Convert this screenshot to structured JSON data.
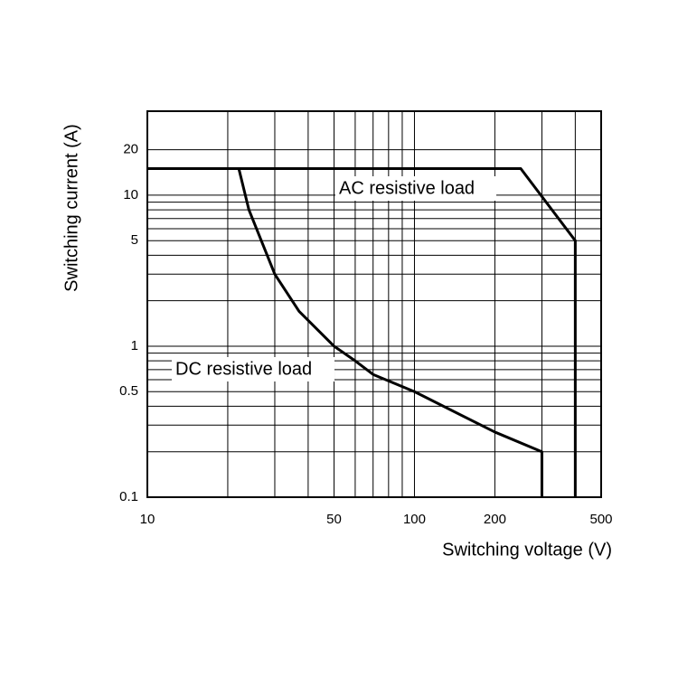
{
  "chart_data": {
    "type": "line",
    "x_label": "Switching voltage (V)",
    "y_label": "Switching current (A)",
    "xscale": "log",
    "yscale": "log",
    "xlim": [
      10,
      500
    ],
    "ylim": [
      0.1,
      36
    ],
    "xticks": [
      10,
      50,
      100,
      200,
      500
    ],
    "yticks": [
      0.1,
      0.5,
      1,
      5,
      10,
      20
    ],
    "xgrid": [
      20,
      30,
      40,
      50,
      60,
      70,
      80,
      90,
      100,
      200,
      300,
      400
    ],
    "ygrid": [
      0.2,
      0.3,
      0.4,
      0.5,
      0.6,
      0.7,
      0.8,
      0.9,
      1,
      2,
      3,
      4,
      5,
      6,
      7,
      8,
      9,
      10,
      20
    ],
    "grid": true,
    "series": [
      {
        "name": "AC resistive load",
        "color": "#000000",
        "x": [
          10,
          250,
          400,
          400
        ],
        "values": [
          15,
          15,
          5,
          0.1
        ]
      },
      {
        "name": "DC resistive load",
        "color": "#000000",
        "x": [
          22,
          24,
          30,
          37,
          50,
          60,
          70,
          100,
          200,
          300,
          300
        ],
        "values": [
          15,
          8,
          3,
          1.7,
          1,
          0.8,
          0.65,
          0.5,
          0.27,
          0.2,
          0.1
        ]
      }
    ]
  }
}
